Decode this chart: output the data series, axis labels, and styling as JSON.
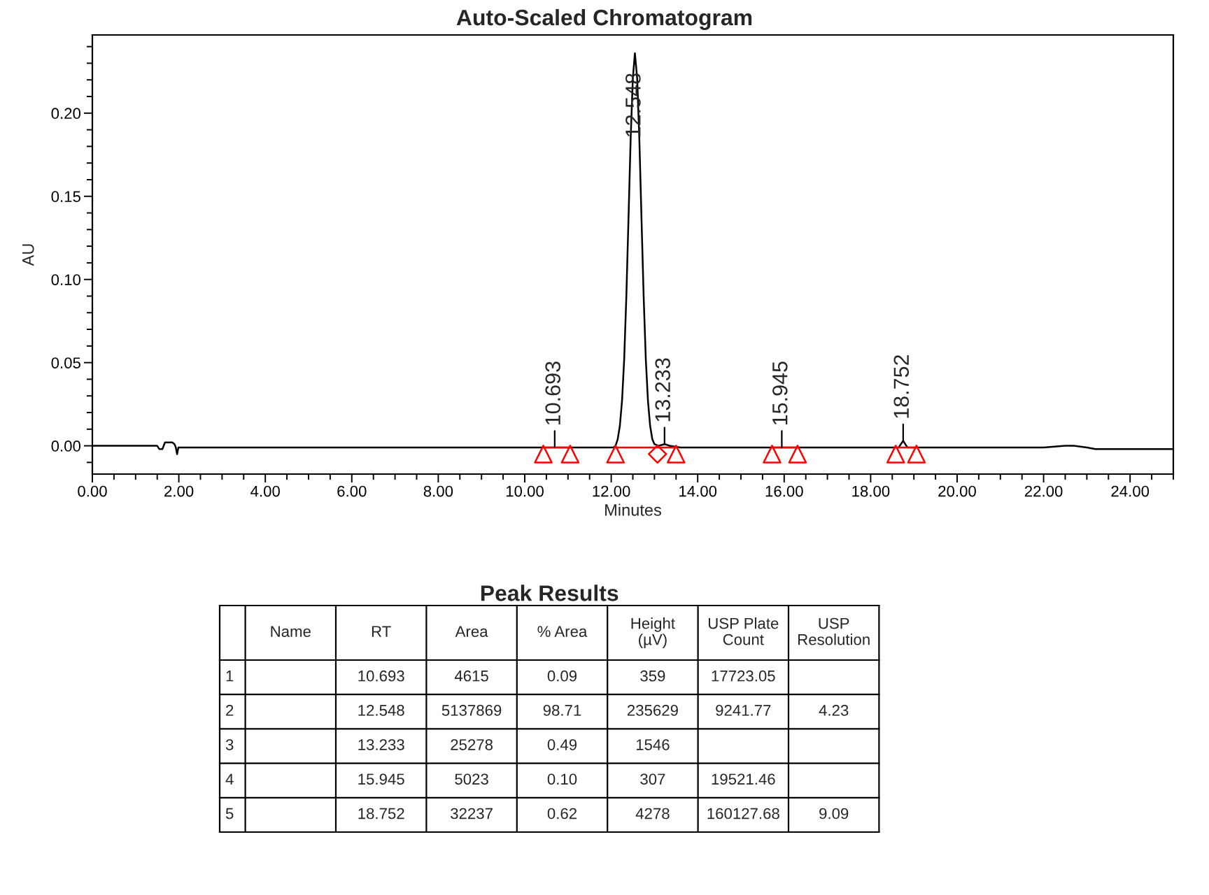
{
  "chart_data": [
    {
      "type": "line",
      "title": "Auto-Scaled Chromatogram",
      "xlabel": "Minutes",
      "ylabel": "AU",
      "xlim": [
        0,
        25
      ],
      "ylim": [
        -0.017,
        0.247
      ],
      "xticks": [
        {
          "value": 0,
          "label": "0.00"
        },
        {
          "value": 0.5,
          "label": null
        },
        {
          "value": 1,
          "label": null
        },
        {
          "value": 1.5,
          "label": null
        },
        {
          "value": 2,
          "label": "2.00"
        },
        {
          "value": 2.5,
          "label": null
        },
        {
          "value": 3,
          "label": null
        },
        {
          "value": 3.5,
          "label": null
        },
        {
          "value": 4,
          "label": "4.00"
        },
        {
          "value": 4.5,
          "label": null
        },
        {
          "value": 5,
          "label": null
        },
        {
          "value": 5.5,
          "label": null
        },
        {
          "value": 6,
          "label": "6.00"
        },
        {
          "value": 6.5,
          "label": null
        },
        {
          "value": 7,
          "label": null
        },
        {
          "value": 7.5,
          "label": null
        },
        {
          "value": 8,
          "label": "8.00"
        },
        {
          "value": 8.5,
          "label": null
        },
        {
          "value": 9,
          "label": null
        },
        {
          "value": 9.5,
          "label": null
        },
        {
          "value": 10,
          "label": "10.00"
        },
        {
          "value": 10.5,
          "label": null
        },
        {
          "value": 11,
          "label": null
        },
        {
          "value": 11.5,
          "label": null
        },
        {
          "value": 12,
          "label": "12.00"
        },
        {
          "value": 12.5,
          "label": null
        },
        {
          "value": 13,
          "label": null
        },
        {
          "value": 13.5,
          "label": null
        },
        {
          "value": 14,
          "label": "14.00"
        },
        {
          "value": 14.5,
          "label": null
        },
        {
          "value": 15,
          "label": null
        },
        {
          "value": 15.5,
          "label": null
        },
        {
          "value": 16,
          "label": "16.00"
        },
        {
          "value": 16.5,
          "label": null
        },
        {
          "value": 17,
          "label": null
        },
        {
          "value": 17.5,
          "label": null
        },
        {
          "value": 18,
          "label": "18.00"
        },
        {
          "value": 18.5,
          "label": null
        },
        {
          "value": 19,
          "label": null
        },
        {
          "value": 19.5,
          "label": null
        },
        {
          "value": 20,
          "label": "20.00"
        },
        {
          "value": 20.5,
          "label": null
        },
        {
          "value": 21,
          "label": null
        },
        {
          "value": 21.5,
          "label": null
        },
        {
          "value": 22,
          "label": "22.00"
        },
        {
          "value": 22.5,
          "label": null
        },
        {
          "value": 23,
          "label": null
        },
        {
          "value": 23.5,
          "label": null
        },
        {
          "value": 24,
          "label": "24.00"
        },
        {
          "value": 24.5,
          "label": null
        },
        {
          "value": 25,
          "label": null
        }
      ],
      "yticks": [
        {
          "value": -0.01,
          "label": null
        },
        {
          "value": 0,
          "label": "0.00"
        },
        {
          "value": 0.01,
          "label": null
        },
        {
          "value": 0.02,
          "label": null
        },
        {
          "value": 0.03,
          "label": null
        },
        {
          "value": 0.04,
          "label": null
        },
        {
          "value": 0.05,
          "label": "0.05"
        },
        {
          "value": 0.06,
          "label": null
        },
        {
          "value": 0.07,
          "label": null
        },
        {
          "value": 0.08,
          "label": null
        },
        {
          "value": 0.09,
          "label": null
        },
        {
          "value": 0.1,
          "label": "0.10"
        },
        {
          "value": 0.11,
          "label": null
        },
        {
          "value": 0.12,
          "label": null
        },
        {
          "value": 0.13,
          "label": null
        },
        {
          "value": 0.14,
          "label": null
        },
        {
          "value": 0.15,
          "label": "0.15"
        },
        {
          "value": 0.16,
          "label": null
        },
        {
          "value": 0.17,
          "label": null
        },
        {
          "value": 0.18,
          "label": null
        },
        {
          "value": 0.19,
          "label": null
        },
        {
          "value": 0.2,
          "label": "0.20"
        },
        {
          "value": 0.21,
          "label": null
        },
        {
          "value": 0.22,
          "label": null
        },
        {
          "value": 0.23,
          "label": null
        },
        {
          "value": 0.24,
          "label": null
        }
      ],
      "series": [
        {
          "type": "line",
          "color": "#000000",
          "x": [
            0,
            1.5,
            1.55,
            1.62,
            1.68,
            1.75,
            1.85,
            1.9,
            1.93,
            1.96,
            1.99,
            2.1,
            4,
            6,
            8,
            10,
            12.05,
            12.1,
            12.15,
            12.2,
            12.25,
            12.3,
            12.35,
            12.4,
            12.45,
            12.5,
            12.548,
            12.6,
            12.65,
            12.7,
            12.75,
            12.8,
            12.85,
            12.9,
            12.95,
            13.0,
            13.1,
            13.233,
            13.35,
            13.6,
            15.8,
            16.1,
            18.65,
            18.7,
            18.752,
            18.8,
            18.85,
            20,
            22,
            22.5,
            22.7,
            23.0,
            23.2,
            25
          ],
          "values": [
            0,
            0,
            -0.002,
            -0.002,
            0.002,
            0.002,
            0.002,
            0.001,
            -0.001,
            -0.005,
            -0.001,
            -0.001,
            -0.001,
            -0.001,
            -0.001,
            -0.001,
            -0.001,
            0,
            0.004,
            0.012,
            0.027,
            0.052,
            0.09,
            0.137,
            0.185,
            0.221,
            0.236,
            0.221,
            0.185,
            0.137,
            0.09,
            0.052,
            0.027,
            0.012,
            0.004,
            0.001,
            0,
            0.001,
            0,
            -0.001,
            -0.001,
            -0.001,
            -0.001,
            0.001,
            0.003,
            0.001,
            -0.001,
            -0.001,
            -0.001,
            0,
            0,
            -0.001,
            -0.002,
            -0.002
          ]
        },
        {
          "type": "line",
          "color": "#ff0000",
          "x": [
            10.43,
            11.05,
            11.5,
            12.1,
            13.5,
            14.5,
            15.72,
            16.31,
            17.5,
            18.58,
            19.06
          ],
          "values": [
            -0.001,
            -0.001,
            null,
            -0.001,
            -0.001,
            null,
            -0.001,
            -0.001,
            null,
            -0.001,
            -0.001
          ]
        },
        {
          "type": "scatter",
          "color": "#ff0000",
          "marker": "triangle",
          "x": [
            10.43,
            11.05,
            12.1,
            13.5,
            15.72,
            16.31,
            18.58,
            19.06
          ],
          "values": [
            -0.005,
            -0.005,
            -0.005,
            -0.005,
            -0.005,
            -0.005,
            -0.005,
            -0.005
          ]
        },
        {
          "type": "scatter",
          "color": "#ff0000",
          "marker": "diamond",
          "x": [
            13.07
          ],
          "values": [
            -0.005
          ]
        }
      ],
      "annotations": [
        {
          "text": "10.693",
          "x": 10.693,
          "y": -0.001
        },
        {
          "text": "12.548",
          "x": 12.548,
          "y": 0.236
        },
        {
          "text": "13.233",
          "x": 13.233,
          "y": 0.001
        },
        {
          "text": "15.945",
          "x": 15.945,
          "y": -0.001
        },
        {
          "text": "18.752",
          "x": 18.752,
          "y": 0.003
        }
      ]
    },
    {
      "type": "heatmap",
      "title": "Peak Results",
      "categories": [
        "Name",
        "RT",
        "Area",
        "% Area",
        "Height\n(µV)",
        "USP Plate Count",
        "USP Resolution"
      ],
      "y_categories": [
        "1",
        "2",
        "3",
        "4",
        "5"
      ],
      "cells": [
        [
          null,
          10.693,
          4615,
          0.09,
          359,
          17723.05,
          null
        ],
        [
          null,
          12.548,
          5137869,
          98.71,
          235629,
          9241.77,
          4.23
        ],
        [
          null,
          13.233,
          25278,
          0.49,
          1546,
          null,
          null
        ],
        [
          null,
          15.945,
          5023,
          0.1,
          307,
          19521.46,
          null
        ],
        [
          null,
          18.752,
          32237,
          0.62,
          4278,
          160127.68,
          9.09
        ]
      ],
      "cell_labels": [
        [
          null,
          "10.693",
          "4615",
          "0.09",
          "359",
          "17723.05",
          null
        ],
        [
          null,
          "12.548",
          "5137869",
          "98.71",
          "235629",
          "9241.77",
          "4.23"
        ],
        [
          null,
          "13.233",
          "25278",
          "0.49",
          "1546",
          null,
          null
        ],
        [
          null,
          "15.945",
          "5023",
          "0.10",
          "307",
          "19521.46",
          null
        ],
        [
          null,
          "18.752",
          "32237",
          "0.62",
          "4278",
          "160127.68",
          "9.09"
        ]
      ]
    }
  ]
}
